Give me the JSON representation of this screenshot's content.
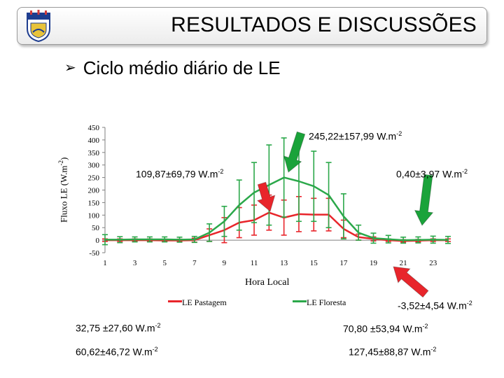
{
  "header": {
    "title": "RESULTADOS E DISCUSSÕES",
    "subtitle_bullet": "➢",
    "subtitle": "Ciclo médio diário de LE"
  },
  "annotations": {
    "forest_max_main": "245,22±157,99 W.m",
    "forest_max_sup": "-2",
    "pasture_max_main": "109,87±69,79 W.m",
    "pasture_max_sup": "-2",
    "forest_night_main": "0,40±3,97 W.m",
    "forest_night_sup": "-2",
    "pasture_night_main": "-3,52±4,54 W.m",
    "pasture_night_sup": "-2",
    "pasture_mean_main": "32,75 ±27,60 W.m",
    "pasture_mean_sup": "-2",
    "pasture_day_main": "60,62±46,72 W.m",
    "pasture_day_sup": "-2",
    "forest_mean_main": "70,80 ±53,94 W.m",
    "forest_mean_sup": "-2",
    "forest_day_main": "127,45±88,87 W.m",
    "forest_day_sup": "-2"
  },
  "arrows": {
    "green": "#1aa33a",
    "red": "#e8252b"
  },
  "chart_data": {
    "type": "line",
    "ylabel_main": "Fluxo LE  (W.m",
    "ylabel_sup": "-2",
    "ylabel_end": ")",
    "xlabel": "Hora Local",
    "ylim": [
      -50,
      450
    ],
    "yticks": [
      -50,
      0,
      50,
      100,
      150,
      200,
      250,
      300,
      350,
      400,
      450
    ],
    "xlim": [
      1,
      24
    ],
    "xticks": [
      1,
      3,
      5,
      7,
      9,
      11,
      13,
      15,
      17,
      19,
      21,
      23
    ],
    "x": [
      1,
      2,
      3,
      4,
      5,
      6,
      7,
      8,
      9,
      10,
      11,
      12,
      13,
      14,
      15,
      16,
      17,
      18,
      19,
      20,
      21,
      22,
      23,
      24
    ],
    "series": [
      {
        "name": "LE Pastagem",
        "color": "#e8252b",
        "values": [
          0,
          0,
          0,
          0,
          -1,
          -1,
          0,
          20,
          40,
          70,
          80,
          110,
          90,
          104,
          102,
          102,
          45,
          12,
          5,
          0,
          -3,
          -2,
          0,
          0
        ],
        "errors": [
          5,
          5,
          5,
          5,
          5,
          5,
          8,
          25,
          50,
          60,
          60,
          70,
          70,
          70,
          65,
          65,
          35,
          12,
          8,
          5,
          5,
          5,
          5,
          5
        ]
      },
      {
        "name": "LE Floresta",
        "color": "#2ba84a",
        "values": [
          2,
          2,
          3,
          3,
          3,
          2,
          3,
          30,
          75,
          140,
          190,
          220,
          250,
          235,
          215,
          180,
          95,
          30,
          8,
          4,
          0,
          1,
          2,
          1
        ],
        "errors": [
          20,
          12,
          10,
          10,
          10,
          10,
          12,
          35,
          60,
          100,
          120,
          160,
          158,
          160,
          140,
          130,
          90,
          30,
          20,
          15,
          12,
          12,
          14,
          14
        ]
      }
    ]
  }
}
